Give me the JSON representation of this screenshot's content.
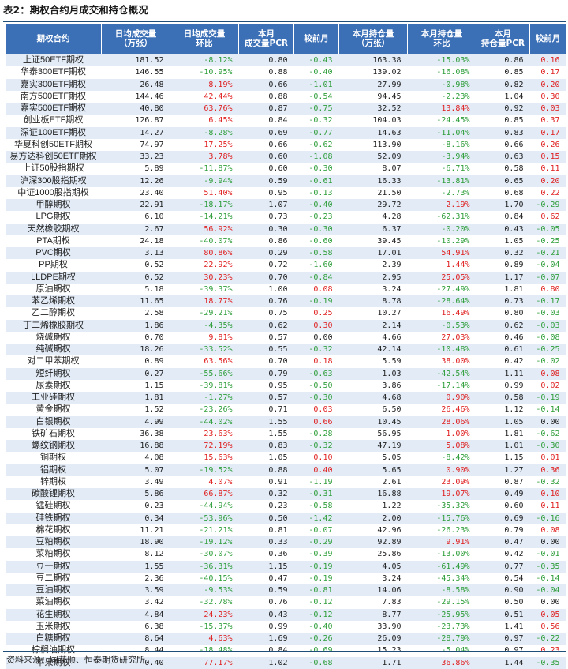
{
  "title": "表2：期权合约月成交和持仓概况",
  "source": "资料来源：同花顺、恒泰期货研究所",
  "colors": {
    "header_bg": "#3b6fb6",
    "stripe": "#e2ebf6",
    "negative": "#2e9e3a",
    "positive": "#e02020"
  },
  "columns": [
    "期权合约",
    "日均成交量\n（万张）",
    "日均成交量\n环比",
    "本月\n成交量PCR",
    "较前月",
    "本月持仓量\n（万张）",
    "本月持仓量\n环比",
    "本月\n持仓量PCR",
    "较前月"
  ],
  "rows": [
    [
      "上证50ETF期权",
      "181.52",
      "-8.12%",
      "0.80",
      "-0.43",
      "163.38",
      "-15.03%",
      "0.86",
      "0.16"
    ],
    [
      "华泰300ETF期权",
      "146.55",
      "-10.95%",
      "0.88",
      "-0.40",
      "139.02",
      "-16.08%",
      "0.85",
      "0.17"
    ],
    [
      "嘉实300ETF期权",
      "26.48",
      "8.19%",
      "0.66",
      "-1.01",
      "27.99",
      "-0.98%",
      "0.82",
      "0.20"
    ],
    [
      "南方500ETF期权",
      "144.46",
      "42.44%",
      "0.88",
      "-0.54",
      "94.45",
      "-2.23%",
      "1.04",
      "0.30"
    ],
    [
      "嘉实500ETF期权",
      "40.80",
      "63.76%",
      "0.87",
      "-0.75",
      "32.52",
      "13.84%",
      "0.92",
      "0.03"
    ],
    [
      "创业板ETF期权",
      "126.87",
      "6.45%",
      "0.84",
      "-0.32",
      "104.03",
      "-24.45%",
      "0.85",
      "0.37"
    ],
    [
      "深证100ETF期权",
      "14.27",
      "-8.28%",
      "0.69",
      "-0.77",
      "14.63",
      "-11.04%",
      "0.83",
      "0.17"
    ],
    [
      "华夏科创50ETF期权",
      "74.97",
      "17.25%",
      "0.66",
      "-0.62",
      "113.90",
      "-8.16%",
      "0.66",
      "0.26"
    ],
    [
      "易方达科创50ETF期权",
      "33.23",
      "3.78%",
      "0.60",
      "-1.08",
      "52.09",
      "-3.94%",
      "0.63",
      "0.15"
    ],
    [
      "上证50股指期权",
      "5.89",
      "-11.87%",
      "0.60",
      "-0.30",
      "8.07",
      "-6.71%",
      "0.58",
      "0.11"
    ],
    [
      "沪深300股指期权",
      "12.26",
      "-9.94%",
      "0.59",
      "-0.61",
      "16.33",
      "-13.81%",
      "0.65",
      "0.20"
    ],
    [
      "中证1000股指期权",
      "23.40",
      "51.40%",
      "0.95",
      "-0.13",
      "21.50",
      "-2.73%",
      "0.68",
      "0.22"
    ],
    [
      "甲醇期权",
      "22.91",
      "-18.17%",
      "1.07",
      "-0.40",
      "29.72",
      "2.19%",
      "1.70",
      "-0.29"
    ],
    [
      "LPG期权",
      "6.10",
      "-14.21%",
      "0.73",
      "-0.23",
      "4.28",
      "-62.31%",
      "0.84",
      "0.62"
    ],
    [
      "天然橡胶期权",
      "2.67",
      "56.92%",
      "0.30",
      "-0.30",
      "6.37",
      "-0.20%",
      "0.43",
      "-0.05"
    ],
    [
      "PTA期权",
      "24.18",
      "-40.07%",
      "0.86",
      "-0.60",
      "39.45",
      "-10.29%",
      "1.05",
      "-0.25"
    ],
    [
      "PVC期权",
      "3.13",
      "80.86%",
      "0.29",
      "-0.58",
      "17.01",
      "54.91%",
      "0.32",
      "-0.21"
    ],
    [
      "PP期权",
      "0.52",
      "22.92%",
      "0.72",
      "-1.60",
      "2.39",
      "1.44%",
      "0.89",
      "-0.04"
    ],
    [
      "LLDPE期权",
      "0.52",
      "30.23%",
      "0.70",
      "-0.84",
      "2.95",
      "25.05%",
      "1.17",
      "-0.07"
    ],
    [
      "原油期权",
      "5.18",
      "-39.37%",
      "1.00",
      "0.08",
      "3.24",
      "-27.49%",
      "1.81",
      "0.80"
    ],
    [
      "苯乙烯期权",
      "11.65",
      "18.77%",
      "0.76",
      "-0.19",
      "8.78",
      "-28.64%",
      "0.73",
      "-0.17"
    ],
    [
      "乙二醇期权",
      "2.58",
      "-29.21%",
      "0.75",
      "0.25",
      "10.27",
      "16.49%",
      "0.80",
      "-0.03"
    ],
    [
      "丁二烯橡胶期权",
      "1.86",
      "-4.35%",
      "0.62",
      "0.30",
      "2.14",
      "-0.53%",
      "0.62",
      "-0.03"
    ],
    [
      "烧碱期权",
      "0.70",
      "9.81%",
      "0.57",
      "0.00",
      "4.66",
      "27.03%",
      "0.46",
      "-0.08"
    ],
    [
      "纯碱期权",
      "18.26",
      "-33.52%",
      "0.55",
      "-0.32",
      "42.14",
      "-10.48%",
      "0.61",
      "-0.25"
    ],
    [
      "对二甲苯期权",
      "0.89",
      "63.56%",
      "0.70",
      "0.18",
      "5.59",
      "38.00%",
      "0.42",
      "-0.02"
    ],
    [
      "短纤期权",
      "0.27",
      "-55.66%",
      "0.79",
      "-0.63",
      "1.03",
      "-42.54%",
      "1.11",
      "0.08"
    ],
    [
      "尿素期权",
      "1.15",
      "-39.81%",
      "0.95",
      "-0.50",
      "3.86",
      "-17.14%",
      "0.99",
      "0.02"
    ],
    [
      "工业硅期权",
      "1.81",
      "-1.27%",
      "0.57",
      "-0.30",
      "4.68",
      "0.90%",
      "0.58",
      "-0.19"
    ],
    [
      "黄金期权",
      "1.52",
      "-23.26%",
      "0.71",
      "0.03",
      "6.50",
      "26.46%",
      "1.12",
      "-0.14"
    ],
    [
      "白银期权",
      "4.99",
      "-44.02%",
      "1.55",
      "0.66",
      "10.45",
      "28.06%",
      "1.05",
      "0.00"
    ],
    [
      "铁矿石期权",
      "36.38",
      "23.63%",
      "1.55",
      "-0.28",
      "56.95",
      "1.00%",
      "1.81",
      "-0.62"
    ],
    [
      "螺纹钢期权",
      "16.88",
      "72.19%",
      "0.83",
      "-0.32",
      "47.19",
      "5.08%",
      "1.01",
      "-0.30"
    ],
    [
      "铜期权",
      "4.08",
      "15.63%",
      "1.05",
      "0.10",
      "5.05",
      "-8.42%",
      "1.15",
      "0.01"
    ],
    [
      "铝期权",
      "5.07",
      "-19.52%",
      "0.88",
      "0.40",
      "5.65",
      "0.90%",
      "1.27",
      "0.36"
    ],
    [
      "锌期权",
      "3.49",
      "4.07%",
      "0.91",
      "-1.19",
      "2.61",
      "23.09%",
      "0.87",
      "-0.32"
    ],
    [
      "碳酸锂期权",
      "5.86",
      "66.87%",
      "0.32",
      "-0.31",
      "16.88",
      "19.07%",
      "0.49",
      "0.10"
    ],
    [
      "锰硅期权",
      "0.23",
      "-44.94%",
      "0.23",
      "-0.58",
      "1.22",
      "-35.32%",
      "0.60",
      "0.11"
    ],
    [
      "硅铁期权",
      "0.34",
      "-53.96%",
      "0.50",
      "-1.42",
      "2.00",
      "-15.76%",
      "0.69",
      "-0.16"
    ],
    [
      "棉花期权",
      "11.21",
      "-21.21%",
      "0.81",
      "-0.07",
      "42.96",
      "-26.23%",
      "0.79",
      "0.08"
    ],
    [
      "豆粕期权",
      "18.90",
      "-19.12%",
      "0.33",
      "-0.29",
      "92.89",
      "9.91%",
      "0.47",
      "0.00"
    ],
    [
      "菜粕期权",
      "8.12",
      "-30.07%",
      "0.36",
      "-0.39",
      "25.86",
      "-13.00%",
      "0.42",
      "-0.01"
    ],
    [
      "豆一期权",
      "1.55",
      "-36.31%",
      "1.15",
      "-0.19",
      "4.05",
      "-61.49%",
      "0.77",
      "-0.35"
    ],
    [
      "豆二期权",
      "2.36",
      "-40.15%",
      "0.47",
      "-0.19",
      "3.24",
      "-45.34%",
      "0.54",
      "-0.14"
    ],
    [
      "豆油期权",
      "3.59",
      "-9.53%",
      "0.59",
      "-0.81",
      "14.06",
      "-8.58%",
      "0.90",
      "-0.04"
    ],
    [
      "菜油期权",
      "3.42",
      "-32.78%",
      "0.76",
      "-0.12",
      "7.83",
      "-29.15%",
      "0.50",
      "0.00"
    ],
    [
      "花生期权",
      "4.84",
      "24.23%",
      "0.43",
      "-0.12",
      "8.77",
      "-25.95%",
      "0.51",
      "0.05"
    ],
    [
      "玉米期权",
      "6.38",
      "-15.37%",
      "0.99",
      "-0.40",
      "33.90",
      "-23.73%",
      "1.41",
      "0.56"
    ],
    [
      "白糖期权",
      "8.64",
      "4.63%",
      "1.69",
      "-0.26",
      "26.09",
      "-28.79%",
      "0.97",
      "-0.22"
    ],
    [
      "棕榈油期权",
      "8.44",
      "-18.48%",
      "0.84",
      "-0.69",
      "15.23",
      "-5.04%",
      "0.97",
      "0.23"
    ],
    [
      "苹果期权",
      "0.40",
      "77.17%",
      "1.02",
      "-0.68",
      "1.71",
      "36.86%",
      "1.44",
      "-0.35"
    ]
  ]
}
